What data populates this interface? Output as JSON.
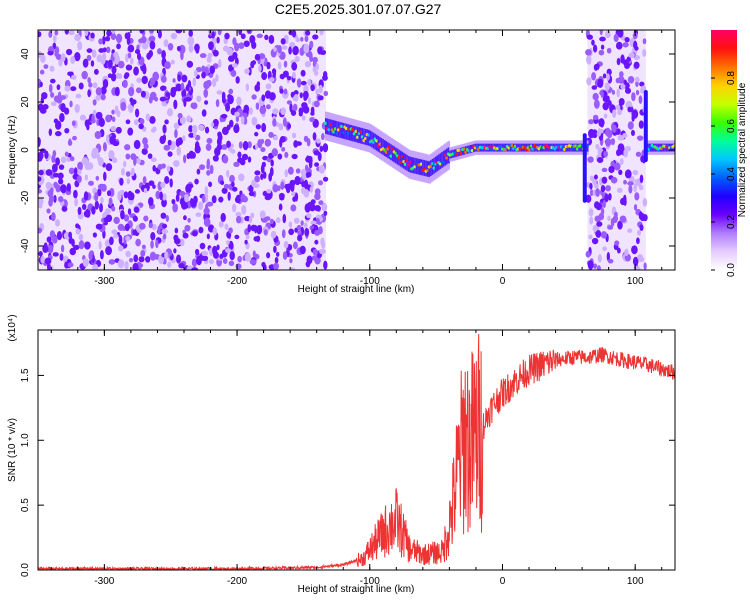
{
  "title": "C2E5.2025.301.07.07.G27",
  "chart_data": [
    {
      "type": "heatmap",
      "title": "",
      "xlabel": "Height of straight line (km)",
      "ylabel": "Frequency (Hz)",
      "xlim": [
        -350,
        130
      ],
      "ylim": [
        -50,
        50
      ],
      "xticks": [
        -300,
        -200,
        -100,
        0,
        100
      ],
      "yticks": [
        -40,
        -20,
        0,
        20,
        40
      ],
      "colorbar": {
        "label": "Normalized spectral amplitude",
        "range": [
          0.0,
          1.0
        ],
        "ticks": [
          "0.0",
          "0.2",
          "0.4",
          "0.6",
          "0.8"
        ],
        "colormap": [
          "#ffffff",
          "#e6ccff",
          "#b07cff",
          "#6a00ff",
          "#1f00ff",
          "#0060ff",
          "#00c8ff",
          "#00ff96",
          "#3cff00",
          "#c8ff00",
          "#ffd000",
          "#ff7000",
          "#ff1010",
          "#ff0066"
        ]
      },
      "regions": [
        {
          "name": "noise",
          "x": [
            -350,
            -133
          ],
          "freq": [
            -50,
            50
          ],
          "amplitude": 0.2
        },
        {
          "name": "signal",
          "x": [
            -133,
            130
          ],
          "freq_center": [
            [
              -133,
              10
            ],
            [
              -100,
              5
            ],
            [
              -70,
              -6
            ],
            [
              -55,
              -8
            ],
            [
              -40,
              -2
            ],
            [
              -20,
              1
            ],
            [
              0,
              1
            ],
            [
              60,
              1
            ],
            [
              130,
              1
            ]
          ],
          "amplitude": 0.55
        },
        {
          "name": "noise",
          "x": [
            64,
            108
          ],
          "freq": [
            -50,
            50
          ],
          "amplitude": 0.2
        }
      ]
    },
    {
      "type": "line",
      "title": "",
      "xlabel": "Height of straight line (km)",
      "ylabel": "SNR (10 * v/v)",
      "yscale_label": "(x10⁴)",
      "xlim": [
        -350,
        130
      ],
      "ylim": [
        0,
        1.85
      ],
      "xticks": [
        -300,
        -200,
        -100,
        0,
        100
      ],
      "yticks": [
        0.0,
        0.5,
        1.0,
        1.5
      ],
      "color": "#ee3333",
      "series": [
        {
          "x": [
            -350,
            -200,
            -140,
            -120,
            -105,
            -95,
            -85,
            -80,
            -75,
            -70,
            -60,
            -45,
            -38,
            -33,
            -28,
            -25,
            -20,
            -15,
            -10,
            -5,
            0,
            10,
            20,
            30,
            40,
            55,
            65,
            75,
            90,
            100,
            110,
            120,
            130
          ],
          "values": [
            0.01,
            0.01,
            0.02,
            0.04,
            0.09,
            0.22,
            0.34,
            0.38,
            0.28,
            0.16,
            0.12,
            0.14,
            0.45,
            0.8,
            1.05,
            0.95,
            1.05,
            1.1,
            1.22,
            1.3,
            1.36,
            1.46,
            1.54,
            1.58,
            1.62,
            1.64,
            1.64,
            1.66,
            1.62,
            1.6,
            1.58,
            1.55,
            1.52
          ]
        }
      ]
    }
  ]
}
